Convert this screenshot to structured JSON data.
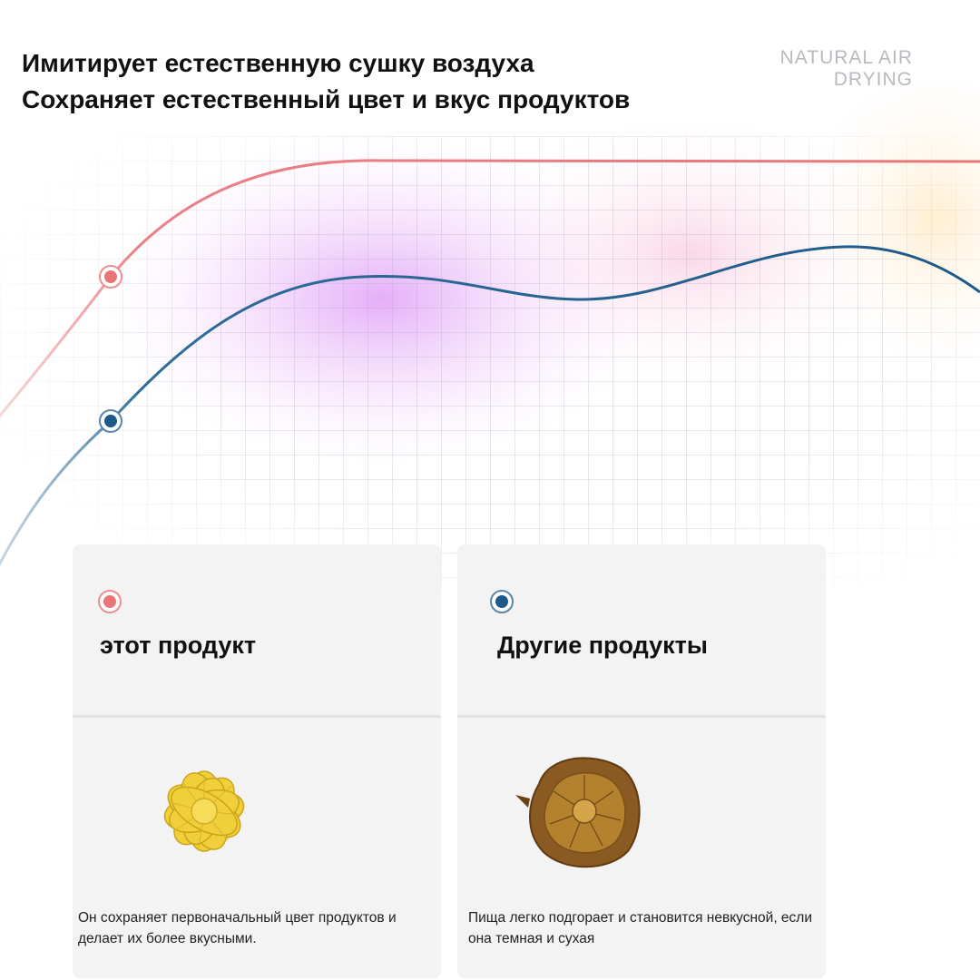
{
  "header": {
    "title_line1": "Имитирует естественную сушку воздуха",
    "title_line2": "Сохраняет естественный цвет и вкус продуктов",
    "tag_line1": "NATURAL AIR",
    "tag_line2": "DRYING"
  },
  "colors": {
    "this_product": "#ea7477",
    "other_products": "#1d5a8a"
  },
  "cards": [
    {
      "title": "этот продукт",
      "marker": "red-dot-icon",
      "image": "dried-pineapple-yellow",
      "description": "Он сохраняет первоначальный цвет продуктов и делает их более вкусными."
    },
    {
      "title": "Другие продукты",
      "marker": "blue-dot-icon",
      "image": "dried-pineapple-brown",
      "description": "Пища легко подгорает и становится невкусной, если она темная и сухая"
    }
  ]
}
